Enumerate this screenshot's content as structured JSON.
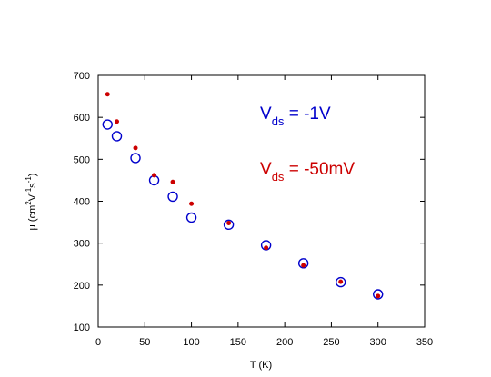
{
  "chart_data": {
    "type": "scatter",
    "title": "",
    "xlabel": "T (K)",
    "ylabel": {
      "prefix": "μ  (cm",
      "sup1": "2",
      "mid1": "V",
      "sup2": "-1",
      "mid2": "s",
      "sup3": "-1",
      "suffix": ")"
    },
    "xlim": [
      0,
      350
    ],
    "ylim": [
      100,
      700
    ],
    "xticks": [
      0,
      50,
      100,
      150,
      200,
      250,
      300,
      350
    ],
    "yticks": [
      100,
      200,
      300,
      400,
      500,
      600,
      700
    ],
    "grid": false,
    "series": [
      {
        "marker": "open-circle",
        "color": "#0000cc",
        "x": [
          10,
          20,
          40,
          60,
          80,
          100,
          140,
          180,
          220,
          260,
          300
        ],
        "y": [
          583,
          555,
          503,
          450,
          411,
          361,
          344,
          295,
          252,
          207,
          178
        ]
      },
      {
        "marker": "filled-dot",
        "color": "#cc0000",
        "x": [
          10,
          20,
          40,
          60,
          80,
          100,
          140,
          180,
          220,
          260,
          300
        ],
        "y": [
          655,
          590,
          527,
          462,
          446,
          394,
          348,
          289,
          247,
          208,
          174
        ]
      }
    ],
    "annotations": [
      {
        "main": "V",
        "sub": "ds",
        "text": " = -1V",
        "color": "#0000cc"
      },
      {
        "main": "V",
        "sub": "ds",
        "text": " = -50mV",
        "color": "#cc0000"
      }
    ]
  }
}
